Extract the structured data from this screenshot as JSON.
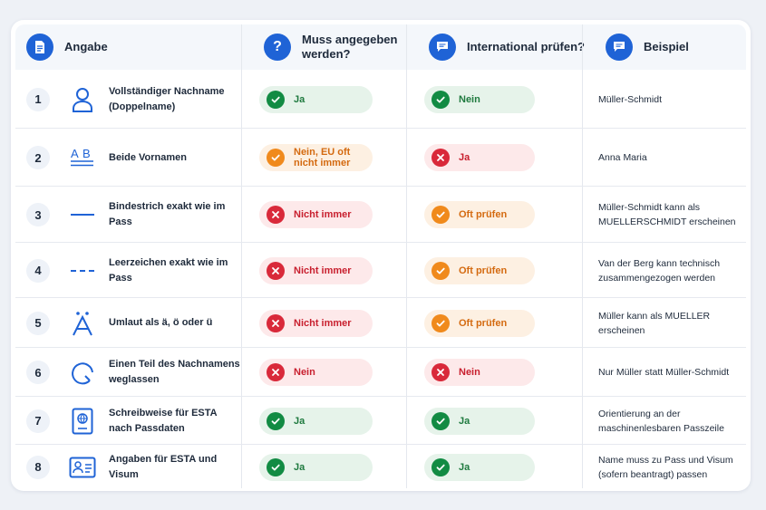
{
  "colors": {
    "accent": "#1f63d6",
    "green": "#128b43",
    "red": "#d9293a",
    "orange": "#f08a1c"
  },
  "header": {
    "col1": {
      "label": "Angabe",
      "icon": "document-icon"
    },
    "col2": {
      "label": "Muss angegeben werden?",
      "icon": "question-icon"
    },
    "col3": {
      "label": "International prüfen?",
      "icon": "chat-icon"
    },
    "col4": {
      "label": "Beispiel",
      "icon": "chat-icon"
    }
  },
  "rows": [
    {
      "num": "1",
      "icon": "person-icon",
      "label": "Vollständiger Nachname (Doppelname)",
      "required": {
        "text": "Ja",
        "status": "green"
      },
      "intl": {
        "text": "Nein",
        "status": "green"
      },
      "example": "Müller-Schmidt"
    },
    {
      "num": "2",
      "icon": "text-ab-icon",
      "label": "Beide Vornamen",
      "required": {
        "text": "Nein, EU oft nicht immer",
        "status": "orange"
      },
      "intl": {
        "text": "Ja",
        "status": "red"
      },
      "example": "Anna Maria"
    },
    {
      "num": "3",
      "icon": "hyphen-line-icon",
      "label": "Bindestrich exakt wie im Pass",
      "required": {
        "text": "Nicht immer",
        "status": "red"
      },
      "intl": {
        "text": "Oft prüfen",
        "status": "orange"
      },
      "example": "Müller-Schmidt kann als MUELLERSCHMIDT erscheinen"
    },
    {
      "num": "4",
      "icon": "dashed-line-icon",
      "label": "Leerzeichen exakt wie im Pass",
      "required": {
        "text": "Nicht immer",
        "status": "red"
      },
      "intl": {
        "text": "Oft prüfen",
        "status": "orange"
      },
      "example": "Van der Berg kann technisch zusammengezogen werden"
    },
    {
      "num": "5",
      "icon": "umlaut-a-icon",
      "label": "Umlaut als ä, ö oder ü",
      "required": {
        "text": "Nicht immer",
        "status": "red"
      },
      "intl": {
        "text": "Oft prüfen",
        "status": "orange"
      },
      "example": "Müller kann als MUELLER erscheinen"
    },
    {
      "num": "6",
      "icon": "partial-circle-icon",
      "label": "Einen Teil des Nachnamens weglassen",
      "required": {
        "text": "Nein",
        "status": "red"
      },
      "intl": {
        "text": "Nein",
        "status": "red"
      },
      "example": "Nur Müller statt Müller-Schmidt"
    },
    {
      "num": "7",
      "icon": "passport-icon",
      "label": "Schreibweise für ESTA nach Passdaten",
      "required": {
        "text": "Ja",
        "status": "green"
      },
      "intl": {
        "text": "Ja",
        "status": "green"
      },
      "example": "Orientierung an der maschinenlesbaren Passzeile"
    },
    {
      "num": "8",
      "icon": "id-card-icon",
      "label": "Angaben für ESTA und Visum",
      "required": {
        "text": "Ja",
        "status": "green"
      },
      "intl": {
        "text": "Ja",
        "status": "green"
      },
      "example": "Name muss zu Pass und Visum (sofern beantragt) passen"
    }
  ]
}
